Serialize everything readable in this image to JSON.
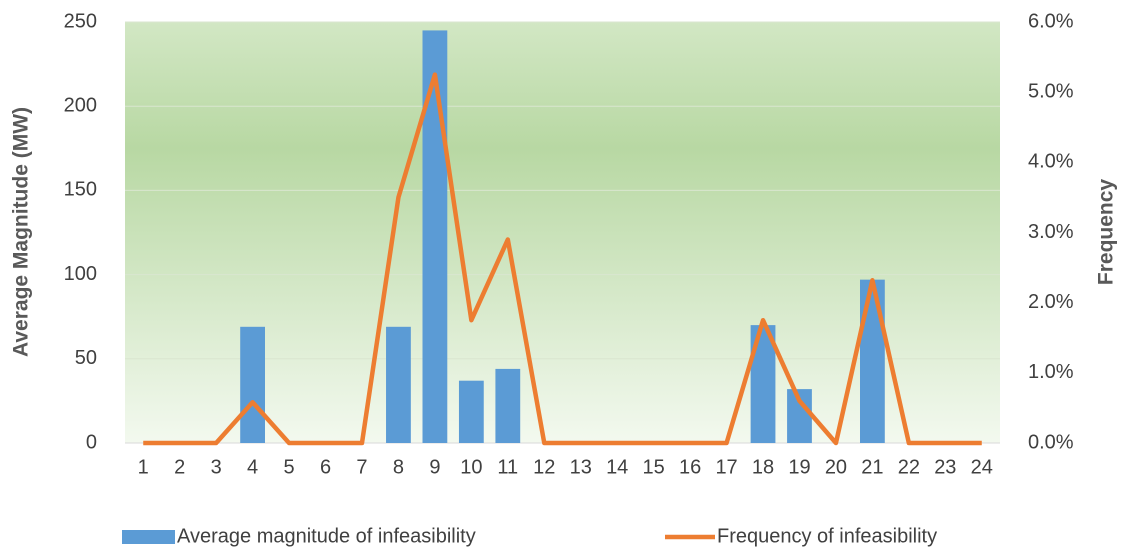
{
  "chart_data": {
    "type": "bar_line",
    "categories": [
      "1",
      "2",
      "3",
      "4",
      "5",
      "6",
      "7",
      "8",
      "9",
      "10",
      "11",
      "12",
      "13",
      "14",
      "15",
      "16",
      "17",
      "18",
      "19",
      "20",
      "21",
      "22",
      "23",
      "24"
    ],
    "y_label": "Average Magnitude (MW)",
    "y2_label": "Frequency",
    "ylim": [
      0,
      250
    ],
    "yticks": [
      0,
      50,
      100,
      150,
      200,
      250
    ],
    "y2lim": [
      0,
      6
    ],
    "y2ticks": [
      {
        "value": 0,
        "label": "0.0%"
      },
      {
        "value": 1,
        "label": "1.0%"
      },
      {
        "value": 2,
        "label": "2.0%"
      },
      {
        "value": 3,
        "label": "3.0%"
      },
      {
        "value": 4,
        "label": "4.0%"
      },
      {
        "value": 5,
        "label": "5.0%"
      },
      {
        "value": 6,
        "label": "6.0%"
      }
    ],
    "grid": true,
    "legend": "bottom",
    "series": [
      {
        "name": "Average magnitude of infeasibility",
        "type": "bar",
        "color": "#5b9bd5",
        "values": [
          0,
          0,
          0,
          69,
          0,
          0,
          0,
          69,
          245,
          37,
          44,
          0,
          0,
          0,
          0,
          0,
          0,
          70,
          32,
          0,
          97,
          0,
          0,
          0
        ]
      },
      {
        "name": "Frequency of infeasibility",
        "type": "line",
        "color": "#ed7d31",
        "axis": "y2",
        "values": [
          0,
          0,
          0,
          0.58,
          0,
          0,
          0,
          3.5,
          5.25,
          1.75,
          2.9,
          0,
          0,
          0,
          0,
          0,
          0,
          1.75,
          0.6,
          0,
          2.32,
          0,
          0,
          0
        ]
      }
    ]
  }
}
